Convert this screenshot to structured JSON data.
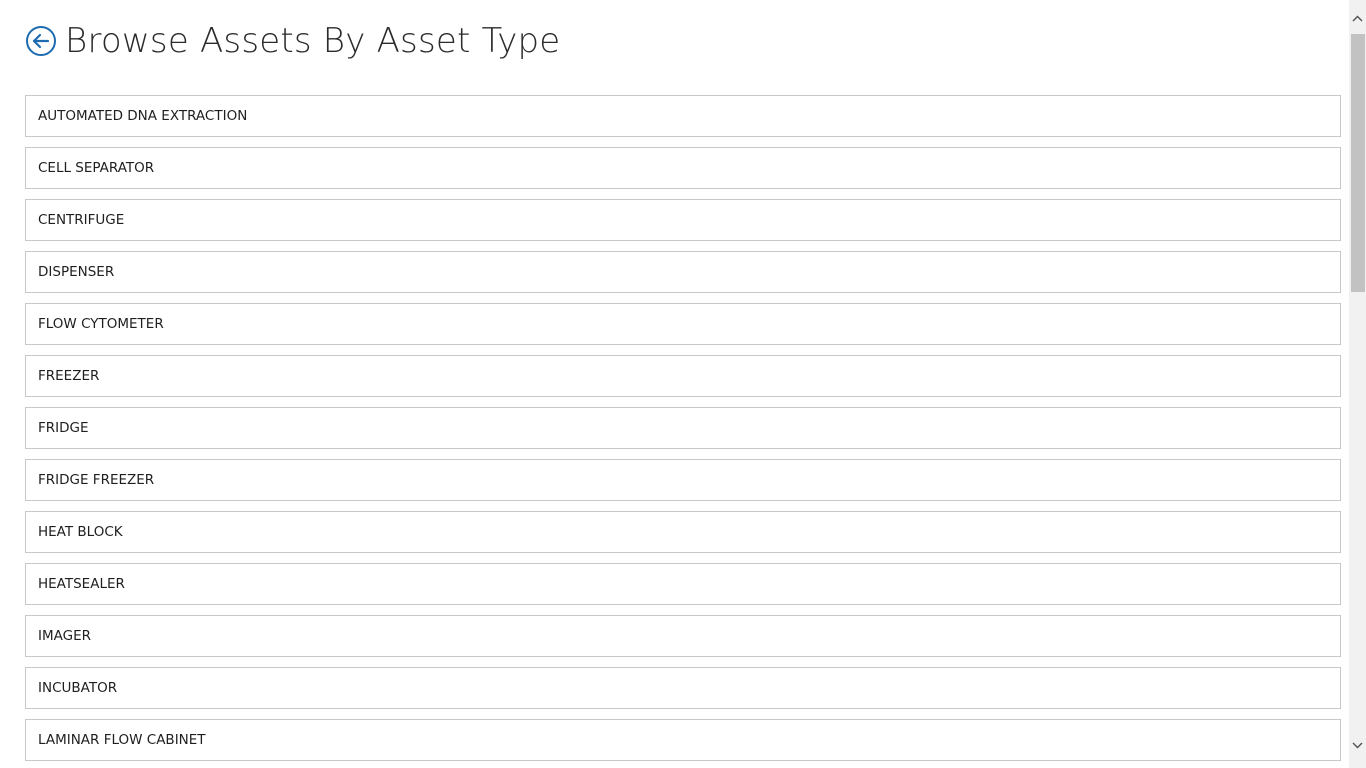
{
  "header": {
    "title": "Browse Assets By Asset Type",
    "back_icon": "circle-arrow-left-icon",
    "accent_color": "#1e6bb0"
  },
  "asset_types": [
    {
      "label": "AUTOMATED DNA EXTRACTION"
    },
    {
      "label": "CELL SEPARATOR"
    },
    {
      "label": "CENTRIFUGE"
    },
    {
      "label": "DISPENSER"
    },
    {
      "label": "FLOW CYTOMETER"
    },
    {
      "label": "FREEZER"
    },
    {
      "label": "FRIDGE"
    },
    {
      "label": "FRIDGE FREEZER"
    },
    {
      "label": "HEAT BLOCK"
    },
    {
      "label": "HEATSEALER"
    },
    {
      "label": "IMAGER"
    },
    {
      "label": "INCUBATOR"
    },
    {
      "label": "LAMINAR FLOW CABINET"
    }
  ],
  "scrollbar": {
    "up_icon": "chevron-up-icon",
    "down_icon": "chevron-down-icon"
  }
}
